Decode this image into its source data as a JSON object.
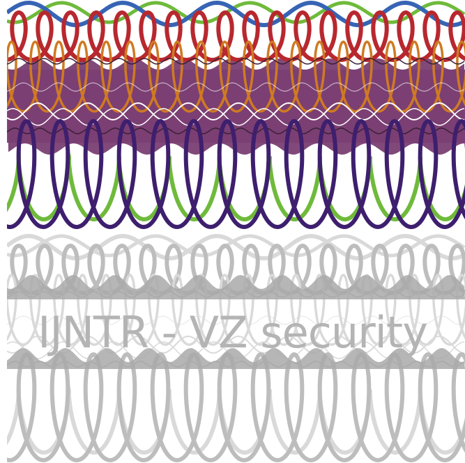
{
  "caption": "IJNTR - VZ security",
  "colors": {
    "background": "#ffffff",
    "band": "#7a3f73",
    "green": "#6fba3b",
    "blue": "#3764b4",
    "red": "#b8282f",
    "orange": "#cf7a22",
    "violet": "#3e1f6e",
    "white_wave": "#ffffff",
    "dark_wave": "#3a2036",
    "grey_light": "#d9d9d9",
    "grey_mid": "#bdbdbd",
    "grey_dark": "#a9a9a9"
  }
}
